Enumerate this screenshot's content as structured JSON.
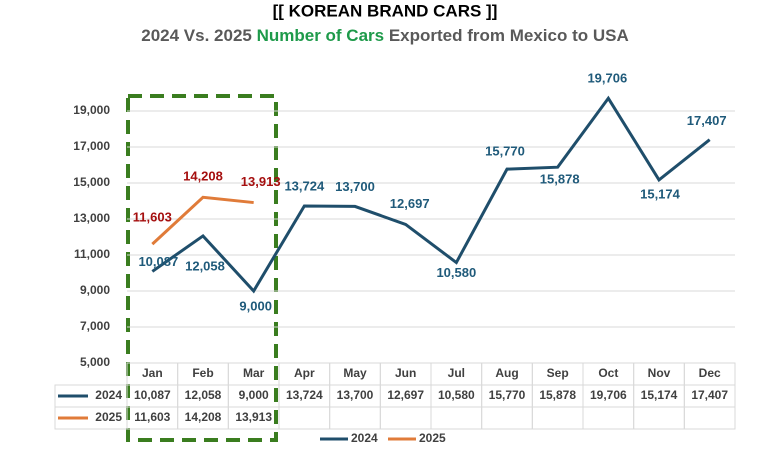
{
  "chart_data": {
    "type": "line",
    "title": "[[ KOREAN BRAND CARS ]]",
    "subtitle": [
      {
        "text": "2024 Vs. 2025 ",
        "color": "#595959"
      },
      {
        "text": "Number of Cars",
        "color": "#1e9a4a"
      },
      {
        "text": " Exported from Mexico to USA",
        "color": "#595959"
      }
    ],
    "categories": [
      "Jan",
      "Feb",
      "Mar",
      "Apr",
      "May",
      "Jun",
      "Jul",
      "Aug",
      "Sep",
      "Oct",
      "Nov",
      "Dec"
    ],
    "series": [
      {
        "name": "2024",
        "color": "#1f4e6b",
        "label_color": "#1f5a7a",
        "values": [
          10087,
          12058,
          9000,
          13724,
          13700,
          12697,
          10580,
          15770,
          15878,
          19706,
          15174,
          17407
        ],
        "value_labels": [
          "10,087",
          "12,058",
          "9,000",
          "13,724",
          "13,700",
          "12,697",
          "10,580",
          "15,770",
          "15,878",
          "19,706",
          "15,174",
          "17,407"
        ]
      },
      {
        "name": "2025",
        "color": "#e07b39",
        "label_color": "#a50f0f",
        "values": [
          11603,
          14208,
          13913,
          null,
          null,
          null,
          null,
          null,
          null,
          null,
          null,
          null
        ],
        "value_labels": [
          "11,603",
          "14,208",
          "13,913",
          null,
          null,
          null,
          null,
          null,
          null,
          null,
          null,
          null
        ]
      }
    ],
    "ylim": [
      5000,
      20000
    ],
    "yticks": [
      {
        "value": 5000,
        "label": "5,000"
      },
      {
        "value": 7000,
        "label": "7,000"
      },
      {
        "value": 9000,
        "label": "9,000"
      },
      {
        "value": 11000,
        "label": "11,000"
      },
      {
        "value": 13000,
        "label": "13,000"
      },
      {
        "value": 15000,
        "label": "15,000"
      },
      {
        "value": 17000,
        "label": "17,000"
      },
      {
        "value": 19000,
        "label": "19,000"
      }
    ],
    "grid": true
  }
}
